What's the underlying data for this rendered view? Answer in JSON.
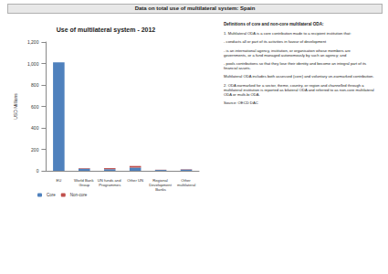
{
  "header": {
    "title": "Data on total use of multilateral system: Spain"
  },
  "chart_data": {
    "type": "bar",
    "title": "Use of multilateral system - 2012",
    "y_label": "USD Millions",
    "categories": [
      "EU",
      "World Bank Group",
      "UN funds and Programmes",
      "Other UN",
      "Regional Development Banks",
      "Other multilateral"
    ],
    "series": [
      {
        "name": "Core",
        "color": "#4f81bd",
        "values": [
          1010,
          20,
          15,
          30,
          8,
          12
        ]
      },
      {
        "name": "Non-core",
        "color": "#c0504d",
        "values": [
          0,
          5,
          10,
          15,
          2,
          3
        ]
      }
    ],
    "stacked": true,
    "ylim": [
      0,
      1200
    ],
    "yticks": [
      0,
      200,
      400,
      600,
      800,
      {
        "value": 1000,
        "label": "1,000"
      },
      {
        "value": 1200,
        "label": "1,200"
      }
    ],
    "grid": false,
    "legend": "bottom"
  },
  "notes": {
    "title": "Definitions of core and non-core multilateral ODA:",
    "paragraphs": [
      "1. Multilateral ODA is a core contribution made to a recipient institution that:",
      "- conducts all or part of its activities in favour of development",
      "- is an international agency, institution, or organisation whose members are governments, or a fund managed autonomously by such an agency; and",
      "- pools contributions so that they lose their identity and become an integral part of its financial assets.",
      "Multilateral ODA includes both assessed (core) and voluntary un-earmarked contribution.",
      "2. ODA earmarked for a sector, theme, country, or region and channelled through a multilateral institution is reported as bilateral ODA and referred to as non-core multilateral ODA or multi-bi ODA."
    ],
    "source": "Source: OECD DAC"
  }
}
